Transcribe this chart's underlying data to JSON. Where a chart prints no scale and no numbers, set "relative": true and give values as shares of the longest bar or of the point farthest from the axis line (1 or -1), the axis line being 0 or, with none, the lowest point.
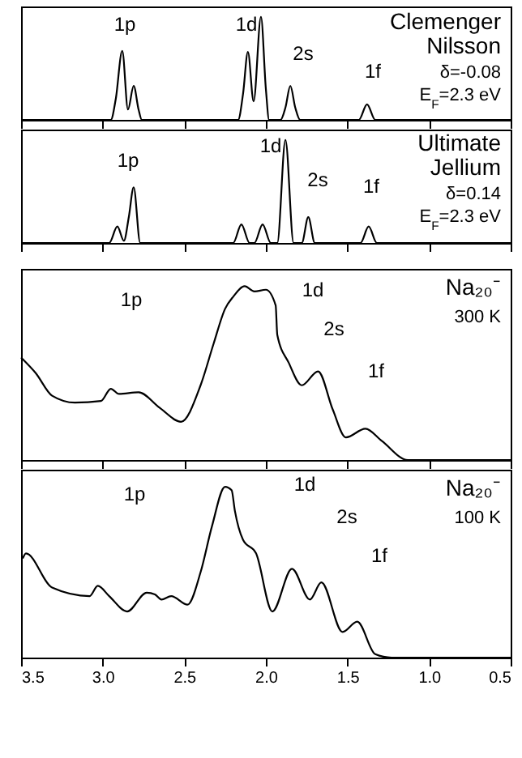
{
  "chart_data": [
    {
      "type": "line",
      "relative": true,
      "marker": "none",
      "line_style": "solid",
      "grid": false,
      "tick_labels": false,
      "xlim": [
        3.5,
        0.5
      ],
      "xticks": [
        3.5,
        3,
        2.5,
        2,
        1.5,
        1,
        0.5
      ],
      "x": [
        3.5,
        2.95,
        2.92,
        2.88,
        2.845,
        2.81,
        2.78,
        2.76,
        2.17,
        2.14,
        2.11,
        2.075,
        2.03,
        2.0,
        1.98,
        1.91,
        1.88,
        1.85,
        1.82,
        1.79,
        1.43,
        1.38,
        1.33,
        0.5
      ],
      "series": [
        {
          "color": "#000000",
          "values": [
            0,
            0,
            0.2,
            0.67,
            0.1,
            0.33,
            0.1,
            0,
            0,
            0.25,
            0.66,
            0.18,
            1.0,
            0.3,
            0,
            0,
            0.12,
            0.33,
            0.12,
            0,
            0,
            0.15,
            0,
            0
          ]
        }
      ],
      "annotations": [
        "Clemenger",
        "Nilsson",
        "δ=-0.08",
        "E$_{F}$=2.3 eV",
        "1p",
        "1d",
        "2s",
        "1f"
      ]
    },
    {
      "type": "line",
      "relative": true,
      "marker": "none",
      "line_style": "solid",
      "grid": false,
      "tick_labels": false,
      "xlim": [
        3.5,
        0.5
      ],
      "xticks": [
        3.5,
        3,
        2.5,
        2,
        1.5,
        1,
        0.5
      ],
      "x": [
        3.5,
        2.96,
        2.91,
        2.87,
        2.84,
        2.81,
        2.77,
        2.2,
        2.15,
        2.1,
        2.07,
        2.02,
        1.97,
        1.93,
        1.88,
        1.83,
        1.78,
        1.74,
        1.7,
        1.42,
        1.37,
        1.32,
        0.5
      ],
      "series": [
        {
          "color": "#000000",
          "values": [
            0,
            0,
            0.16,
            0.02,
            0.25,
            0.54,
            0,
            0,
            0.18,
            0,
            0,
            0.18,
            0,
            0,
            1.0,
            0,
            0,
            0.25,
            0,
            0,
            0.16,
            0,
            0
          ]
        }
      ],
      "annotations": [
        "Ultimate",
        "Jellium",
        "δ=0.14",
        "E$_{F}$=2.3 eV",
        "1p",
        "1d",
        "2s",
        "1f"
      ]
    },
    {
      "type": "line",
      "relative": true,
      "marker": "none",
      "line_style": "solid",
      "grid": false,
      "tick_labels": false,
      "xlim": [
        3.5,
        0.5
      ],
      "xticks": [
        3.5,
        3,
        2.5,
        2,
        1.5,
        1,
        0.5
      ],
      "x": [
        3.5,
        3.41,
        3.31,
        3.17,
        3.01,
        2.95,
        2.9,
        2.78,
        2.65,
        2.52,
        2.4,
        2.32,
        2.25,
        2.2,
        2.13,
        2.07,
        2.0,
        1.94,
        1.93,
        1.86,
        1.78,
        1.68,
        1.59,
        1.51,
        1.39,
        1.29,
        1.13,
        0.5
      ],
      "series": [
        {
          "color": "#000000",
          "values": [
            0.59,
            0.5,
            0.37,
            0.33,
            0.34,
            0.41,
            0.38,
            0.39,
            0.3,
            0.22,
            0.43,
            0.67,
            0.87,
            0.94,
            1.0,
            0.97,
            0.98,
            0.89,
            0.72,
            0.56,
            0.43,
            0.51,
            0.29,
            0.13,
            0.18,
            0.11,
            0,
            0
          ]
        }
      ],
      "annotations": [
        "Na₂₀⁻",
        "300 K",
        "1p",
        "1d",
        "2s",
        "1f"
      ]
    },
    {
      "type": "line",
      "relative": true,
      "marker": "none",
      "line_style": "solid",
      "grid": false,
      "tick_labels": "x",
      "xlim": [
        3.5,
        0.5
      ],
      "xticks": [
        3.5,
        {
          "value": 3,
          "label": "3.0"
        },
        2.5,
        {
          "value": 2,
          "label": "2.0"
        },
        1.5,
        {
          "value": 1,
          "label": "1.0"
        },
        0.5
      ],
      "x": [
        3.49,
        3.47,
        3.31,
        3.08,
        3.03,
        2.96,
        2.85,
        2.73,
        2.68,
        2.64,
        2.58,
        2.48,
        2.4,
        2.33,
        2.25,
        2.21,
        2.19,
        2.14,
        2.06,
        1.96,
        1.84,
        1.73,
        1.66,
        1.53,
        1.44,
        1.33,
        1.23,
        0.5
      ],
      "series": [
        {
          "color": "#000000",
          "values": [
            0.58,
            0.61,
            0.41,
            0.36,
            0.42,
            0.36,
            0.27,
            0.38,
            0.37,
            0.34,
            0.36,
            0.31,
            0.5,
            0.77,
            1.0,
            0.98,
            0.86,
            0.69,
            0.61,
            0.27,
            0.52,
            0.34,
            0.44,
            0.15,
            0.21,
            0.02,
            0,
            0
          ]
        }
      ],
      "annotations": [
        "Na₂₀⁻",
        "100 K",
        "1p",
        "1d",
        "2s",
        "1f"
      ]
    }
  ]
}
